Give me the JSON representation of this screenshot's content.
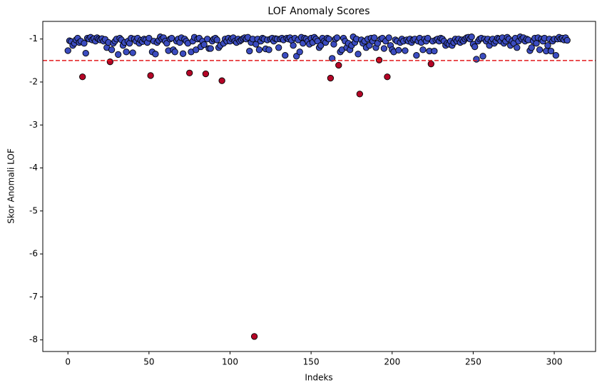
{
  "chart_data": {
    "type": "scatter",
    "title": "LOF Anomaly Scores",
    "x_label": "Indeks",
    "y_label": "Skor Anomali LOF",
    "xlim": [
      -15.5,
      325.5
    ],
    "ylim": [
      -8.27,
      -0.59
    ],
    "xticks": [
      0,
      50,
      100,
      150,
      200,
      250,
      300
    ],
    "yticks": [
      -8,
      -7,
      -6,
      -5,
      -4,
      -3,
      -2,
      -1
    ],
    "threshold": -1.5,
    "threshold_color": "#e31a1c",
    "grid": false,
    "series": [
      {
        "color": "#3b4cc0",
        "x": [
          0,
          1,
          2,
          3,
          4,
          5,
          6,
          7,
          8,
          10,
          11,
          12,
          13,
          14,
          15,
          16,
          17,
          18,
          19,
          20,
          21,
          22,
          23,
          24,
          25,
          27,
          28,
          29,
          30,
          31,
          32,
          33,
          34,
          35,
          36,
          37,
          38,
          39,
          40,
          41,
          42,
          43,
          44,
          45,
          46,
          47,
          48,
          49,
          50,
          52,
          53,
          54,
          55,
          56,
          57,
          58,
          59,
          60,
          61,
          62,
          63,
          64,
          65,
          66,
          67,
          68,
          69,
          70,
          71,
          72,
          73,
          74,
          76,
          77,
          78,
          79,
          80,
          81,
          82,
          83,
          84,
          86,
          87,
          88,
          89,
          90,
          91,
          92,
          93,
          94,
          96,
          97,
          98,
          99,
          100,
          101,
          102,
          103,
          104,
          105,
          106,
          107,
          108,
          109,
          110,
          111,
          112,
          113,
          114,
          116,
          117,
          118,
          119,
          120,
          121,
          122,
          123,
          124,
          125,
          126,
          127,
          128,
          129,
          130,
          131,
          132,
          133,
          134,
          135,
          136,
          137,
          138,
          139,
          140,
          141,
          142,
          143,
          144,
          145,
          146,
          147,
          148,
          149,
          150,
          151,
          152,
          153,
          154,
          155,
          156,
          157,
          158,
          159,
          160,
          161,
          163,
          164,
          165,
          166,
          168,
          169,
          170,
          171,
          172,
          173,
          174,
          175,
          176,
          177,
          178,
          179,
          181,
          182,
          183,
          184,
          185,
          186,
          187,
          188,
          189,
          190,
          191,
          193,
          194,
          195,
          196,
          198,
          199,
          200,
          201,
          202,
          203,
          204,
          205,
          206,
          207,
          208,
          209,
          210,
          211,
          212,
          213,
          214,
          215,
          216,
          217,
          218,
          219,
          220,
          221,
          222,
          223,
          225,
          226,
          227,
          228,
          229,
          230,
          231,
          232,
          233,
          234,
          235,
          236,
          237,
          238,
          239,
          240,
          241,
          242,
          243,
          244,
          245,
          246,
          247,
          248,
          249,
          250,
          251,
          252,
          253,
          254,
          255,
          256,
          257,
          258,
          259,
          260,
          261,
          262,
          263,
          264,
          265,
          266,
          267,
          268,
          269,
          270,
          271,
          272,
          273,
          274,
          275,
          276,
          277,
          278,
          279,
          280,
          281,
          282,
          283,
          284,
          285,
          286,
          287,
          288,
          289,
          290,
          291,
          292,
          293,
          294,
          295,
          296,
          297,
          298,
          299,
          300,
          301,
          302,
          303,
          304,
          305,
          306,
          307,
          308
        ],
        "values": [
          -1.27,
          -1.04,
          -1.06,
          -1.15,
          -1.1,
          -1.02,
          -0.98,
          -1.08,
          -1.05,
          -1.1,
          -1.33,
          -0.98,
          -1.0,
          -0.96,
          -1.02,
          -0.99,
          -1.05,
          -0.97,
          -1.0,
          -1.02,
          -0.99,
          -1.05,
          -1.01,
          -1.2,
          -1.08,
          -1.25,
          -1.1,
          -1.05,
          -1.0,
          -1.36,
          -0.98,
          -1.02,
          -1.15,
          -1.08,
          -1.3,
          -1.05,
          -1.1,
          -0.98,
          -1.32,
          -1.0,
          -1.05,
          -0.98,
          -1.1,
          -1.03,
          -1.06,
          -1.0,
          -1.02,
          -1.08,
          -0.98,
          -1.3,
          -1.05,
          -1.35,
          -1.08,
          -1.03,
          -0.95,
          -1.0,
          -0.97,
          -1.05,
          -1.1,
          -1.27,
          -1.0,
          -0.98,
          -1.25,
          -1.3,
          -1.05,
          -1.0,
          -1.08,
          -0.97,
          -1.34,
          -1.0,
          -1.05,
          -1.1,
          -1.3,
          -1.05,
          -0.96,
          -1.25,
          -1.0,
          -0.98,
          -1.18,
          -1.05,
          -1.13,
          -1.0,
          -1.22,
          -1.22,
          -1.05,
          -1.0,
          -0.98,
          -1.02,
          -1.2,
          -1.15,
          -1.1,
          -1.0,
          -1.05,
          -0.98,
          -1.05,
          -0.99,
          -0.97,
          -1.05,
          -1.08,
          -1.0,
          -1.05,
          -1.02,
          -0.99,
          -0.97,
          -1.0,
          -0.96,
          -1.28,
          -1.08,
          -1.0,
          -1.12,
          -1.0,
          -1.25,
          -1.05,
          -0.98,
          -1.0,
          -1.23,
          -1.02,
          -1.25,
          -1.0,
          -0.98,
          -1.05,
          -0.99,
          -1.0,
          -1.2,
          -1.0,
          -0.98,
          -1.02,
          -1.38,
          -0.98,
          -1.0,
          -0.97,
          -1.03,
          -1.15,
          -0.98,
          -1.4,
          -1.02,
          -1.3,
          -0.96,
          -1.1,
          -0.98,
          -1.0,
          -1.05,
          -1.12,
          -0.98,
          -1.08,
          -0.96,
          -1.0,
          -1.05,
          -1.2,
          -1.15,
          -0.98,
          -1.05,
          -1.08,
          -0.98,
          -1.0,
          -1.45,
          -1.12,
          -1.0,
          -0.97,
          -1.3,
          -1.25,
          -0.98,
          -1.05,
          -1.2,
          -1.1,
          -1.25,
          -1.15,
          -0.95,
          -1.08,
          -1.0,
          -1.35,
          -1.02,
          -1.1,
          -1.05,
          -1.2,
          -1.0,
          -1.15,
          -0.98,
          -1.05,
          -0.97,
          -1.2,
          -1.1,
          -1.0,
          -0.98,
          -1.22,
          -1.05,
          -0.97,
          -1.15,
          -1.25,
          -1.3,
          -1.02,
          -1.05,
          -1.26,
          -1.08,
          -1.0,
          -1.05,
          -1.27,
          -1.02,
          -1.05,
          -1.0,
          -1.08,
          -1.02,
          -1.0,
          -1.38,
          -1.05,
          -0.98,
          -1.08,
          -1.25,
          -1.0,
          -1.05,
          -0.98,
          -1.28,
          -1.05,
          -1.28,
          -1.02,
          -1.0,
          -1.05,
          -0.98,
          -1.0,
          -1.05,
          -1.15,
          -1.1,
          -1.12,
          -1.05,
          -1.15,
          -1.08,
          -1.0,
          -1.05,
          -1.0,
          -1.08,
          -1.02,
          -1.05,
          -1.0,
          -0.97,
          -0.96,
          -1.0,
          -0.95,
          -1.12,
          -1.18,
          -1.47,
          -1.05,
          -1.0,
          -0.98,
          -1.4,
          -1.0,
          -1.05,
          -1.0,
          -1.15,
          -1.05,
          -1.0,
          -1.1,
          -1.05,
          -0.98,
          -1.0,
          -1.05,
          -0.97,
          -1.1,
          -1.05,
          -0.96,
          -1.0,
          -1.15,
          -1.05,
          -1.1,
          -0.98,
          -1.2,
          -1.05,
          -0.95,
          -1.0,
          -0.97,
          -1.05,
          -1.0,
          -1.02,
          -1.27,
          -1.2,
          -1.05,
          -0.98,
          -1.1,
          -0.97,
          -1.25,
          -1.0,
          -1.05,
          -0.98,
          -1.28,
          -1.15,
          -1.0,
          -1.28,
          -1.05,
          -1.0,
          -1.38,
          -1.0,
          -0.96,
          -1.0,
          -0.98,
          -1.02,
          -0.97,
          -1.03
        ]
      },
      {
        "color": "#b40426",
        "x": [
          9,
          26,
          51,
          75,
          85,
          95,
          115,
          162,
          167,
          180,
          192,
          197,
          224
        ],
        "values": [
          -1.88,
          -1.53,
          -1.85,
          -1.79,
          -1.81,
          -1.97,
          -7.92,
          -1.91,
          -1.61,
          -2.28,
          -1.49,
          -1.88,
          -1.58
        ]
      }
    ]
  }
}
